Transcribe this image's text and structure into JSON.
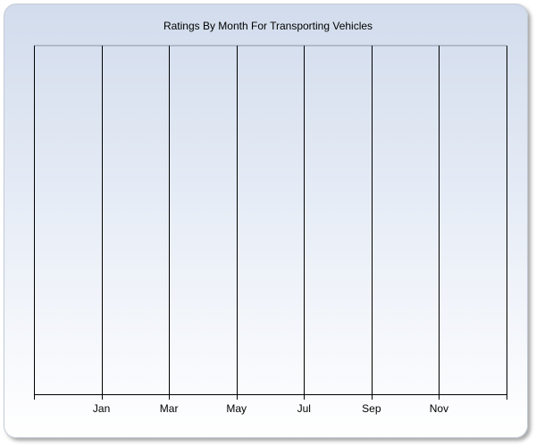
{
  "chart_data": {
    "type": "bar",
    "title": "Ratings By Month For Transporting Vehicles",
    "categories": [
      "Jan",
      "Mar",
      "May",
      "Jul",
      "Sep",
      "Nov"
    ],
    "series": [],
    "xlabel": "",
    "ylabel": "",
    "grid": "vertical",
    "legend": "none"
  }
}
